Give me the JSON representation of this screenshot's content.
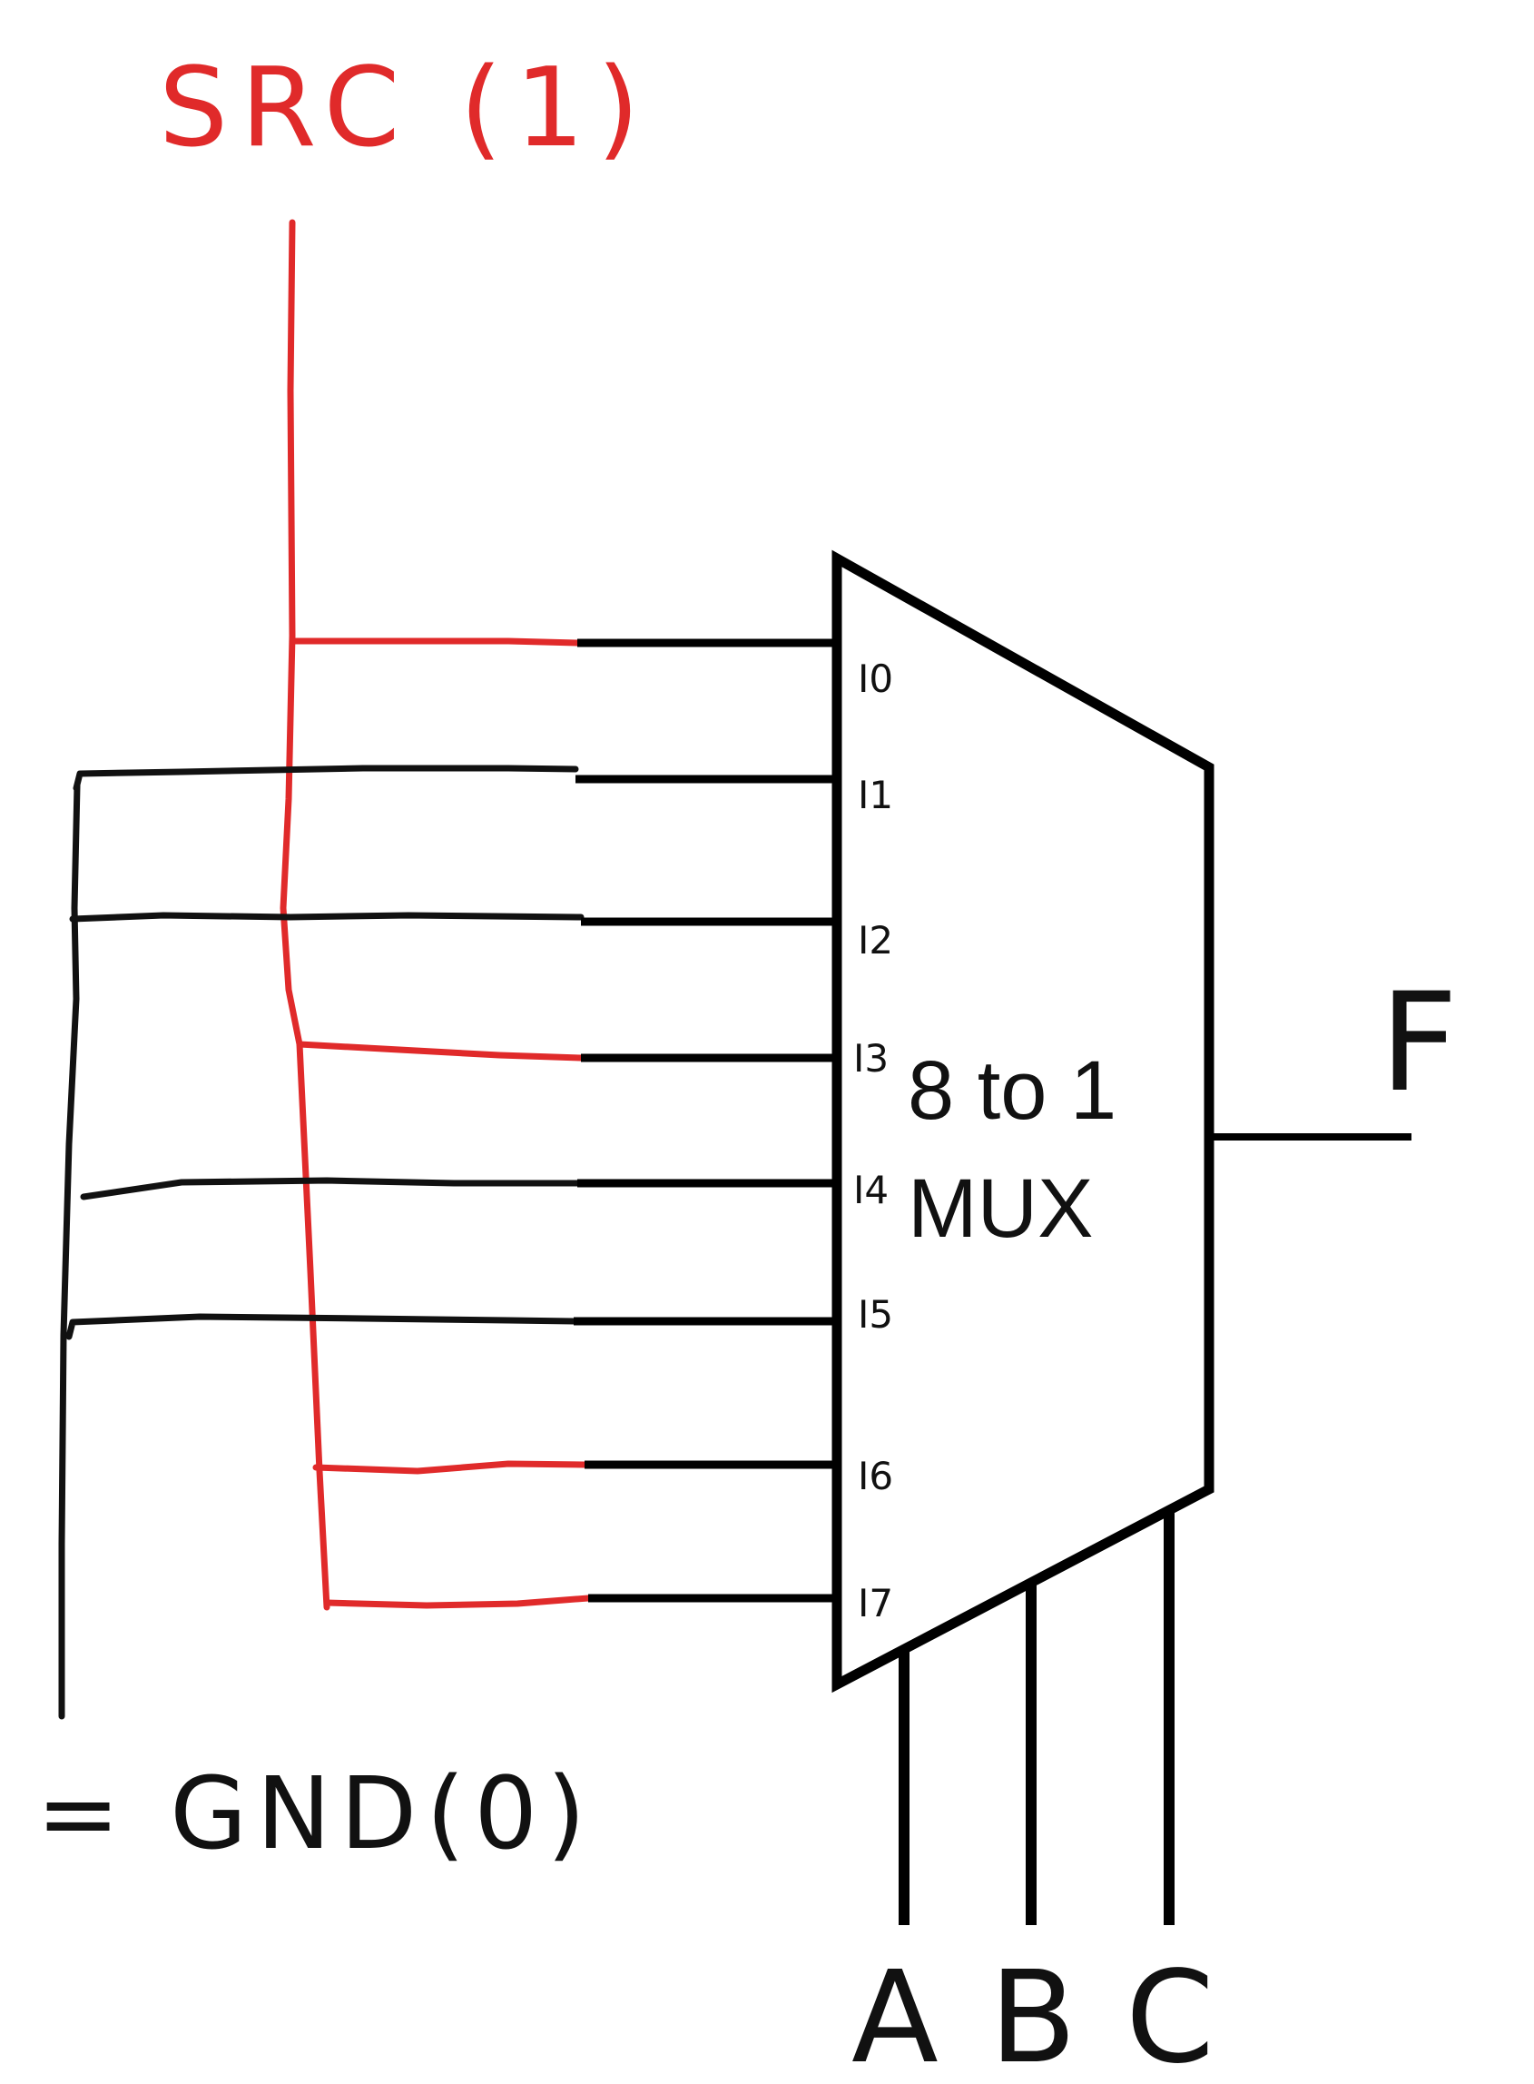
{
  "source": {
    "label": "SRC (1)",
    "color": "#e02a2a"
  },
  "ground": {
    "label": "= GND(0)",
    "color": "#111111"
  },
  "mux": {
    "title_line1": "8 to 1",
    "title_line2": "MUX"
  },
  "inputs": [
    {
      "pin": "I0",
      "label": "I0",
      "connected_to": "SRC"
    },
    {
      "pin": "I1",
      "label": "I1",
      "connected_to": "GND"
    },
    {
      "pin": "I2",
      "label": "I2",
      "connected_to": "GND"
    },
    {
      "pin": "I3",
      "label": "I3",
      "connected_to": "SRC"
    },
    {
      "pin": "I4",
      "label": "I4",
      "connected_to": "GND"
    },
    {
      "pin": "I5",
      "label": "I5",
      "connected_to": "GND"
    },
    {
      "pin": "I6",
      "label": "I6",
      "connected_to": "SRC"
    },
    {
      "pin": "I7",
      "label": "I7",
      "connected_to": "SRC"
    }
  ],
  "output": {
    "label": "F"
  },
  "selects": [
    {
      "label": "A"
    },
    {
      "label": "B"
    },
    {
      "label": "C"
    }
  ]
}
